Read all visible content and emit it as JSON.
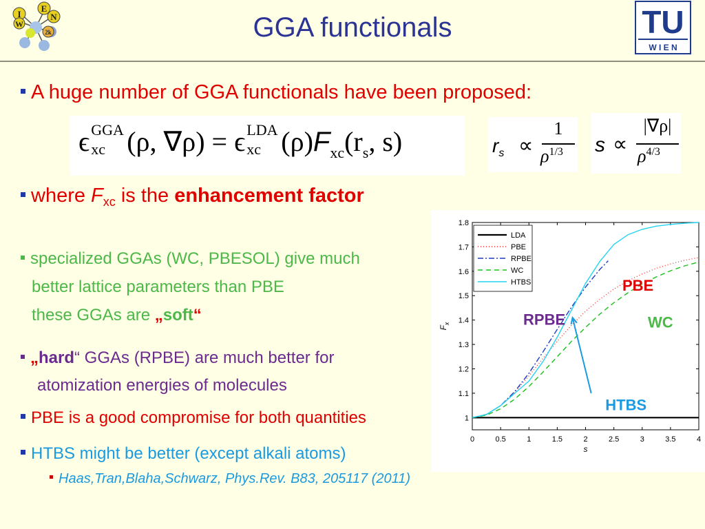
{
  "title": "GGA functionals",
  "logos": {
    "left_letters": [
      "I",
      "E",
      "N",
      "W",
      "2k"
    ],
    "tu_top": "TU",
    "tu_bottom": "W I E N"
  },
  "bullets": {
    "b1": "A huge number of GGA functionals have been proposed:",
    "b2_pre": "where ",
    "b2_F": "F",
    "b2_sub": "xc",
    "b2_mid": " is the ",
    "b2_bold": "enhancement factor",
    "b3_line1": "specialized GGAs (WC, PBESOL) give much",
    "b3_line2": "better lattice parameters than PBE",
    "b3_line3_pre": "these GGAs are ",
    "b3_open_quote": "„",
    "b3_bold": "soft",
    "b3_close_quote": "“",
    "b4_open_quote": "„",
    "b4_bold": "hard",
    "b4_rest": "“ GGAs (RPBE) are much better for",
    "b4_line2": "atomization energies of molecules",
    "b5": "PBE is a good compromise for both quantities",
    "b6": "HTBS might be better (except alkali atoms)",
    "b7": "Haas,Tran,Blaha,Schwarz, Phys.Rev. B83, 205117 (2011)"
  },
  "equations": {
    "eq1_eps": "ϵ",
    "eq1_sup1": "GGA",
    "eq1_sub1": "xc",
    "eq1_args1": "(ρ, ∇ρ) = ",
    "eq1_sup2": "LDA",
    "eq1_sub2": "xc",
    "eq1_args2": "(ρ)",
    "eq1_F": "F",
    "eq1_Fsub": "xc",
    "eq1_args3": "(r",
    "eq1_rsub": "s",
    "eq1_args4": ", s)",
    "eq2_lhs": "r",
    "eq2_lhs_sub": "s",
    "eq2_prop": "∝",
    "eq2_num": "1",
    "eq2_den": "ρ",
    "eq2_den_sup": "1/3",
    "eq3_lhs": "s",
    "eq3_prop": "∝",
    "eq3_num": "|∇ρ|",
    "eq3_den": "ρ",
    "eq3_den_sup": "4/3"
  },
  "chart_data": {
    "type": "line",
    "xlabel": "s",
    "ylabel": "F",
    "ylabel_sub": "x",
    "xlim": [
      0,
      4
    ],
    "ylim": [
      0.95,
      1.8
    ],
    "xticks": [
      "0",
      "0.5",
      "1",
      "1.5",
      "2",
      "2.5",
      "3",
      "3.5",
      "4"
    ],
    "yticks": [
      "1",
      "1.1",
      "1.2",
      "1.3",
      "1.4",
      "1.5",
      "1.6",
      "1.7",
      "1.8"
    ],
    "legend_position": "top-left",
    "series": [
      {
        "name": "LDA",
        "color": "#000000",
        "dash": "",
        "x": [
          0,
          4
        ],
        "y": [
          1.0,
          1.0
        ]
      },
      {
        "name": "PBE",
        "color": "#FF3030",
        "dash": "1,3",
        "x": [
          0,
          0.25,
          0.5,
          0.75,
          1.0,
          1.25,
          1.5,
          1.75,
          2.0,
          2.25,
          2.5,
          2.75,
          3.0,
          3.25,
          3.5,
          3.75,
          4.0
        ],
        "y": [
          1.0,
          1.013,
          1.049,
          1.104,
          1.171,
          1.243,
          1.313,
          1.378,
          1.436,
          1.485,
          1.527,
          1.561,
          1.589,
          1.612,
          1.63,
          1.645,
          1.656
        ]
      },
      {
        "name": "RPBE",
        "color": "#1A3CC8",
        "dash": "8,3,2,3",
        "x": [
          0,
          0.25,
          0.5,
          0.75,
          1.0,
          1.25,
          1.5,
          1.75,
          2.0,
          2.25,
          2.4
        ],
        "y": [
          1.0,
          1.013,
          1.049,
          1.107,
          1.182,
          1.27,
          1.362,
          1.452,
          1.535,
          1.607,
          1.643
        ]
      },
      {
        "name": "WC",
        "color": "#18C018",
        "dash": "7,5",
        "x": [
          0,
          0.25,
          0.5,
          0.75,
          1.0,
          1.25,
          1.5,
          1.75,
          2.0,
          2.25,
          2.5,
          2.75,
          3.0,
          3.25,
          3.5,
          3.75,
          4.0
        ],
        "y": [
          1.0,
          1.01,
          1.036,
          1.076,
          1.128,
          1.187,
          1.25,
          1.312,
          1.37,
          1.424,
          1.471,
          1.512,
          1.548,
          1.577,
          1.602,
          1.622,
          1.638
        ]
      },
      {
        "name": "HTBS",
        "color": "#22D4F0",
        "dash": "",
        "x": [
          0,
          0.25,
          0.5,
          0.75,
          1.0,
          1.25,
          1.5,
          1.75,
          2.0,
          2.25,
          2.5,
          2.75,
          3.0,
          3.25,
          3.5,
          3.75,
          4.0
        ],
        "y": [
          1.0,
          1.013,
          1.049,
          1.1,
          1.15,
          1.23,
          1.33,
          1.44,
          1.55,
          1.64,
          1.71,
          1.75,
          1.772,
          1.785,
          1.792,
          1.797,
          1.8
        ]
      }
    ],
    "annotations": [
      {
        "text": "PBE",
        "color": "#E00000",
        "at": [
          2.65,
          1.52
        ]
      },
      {
        "text": "RPBE",
        "color": "#6B2A8E",
        "at": [
          0.9,
          1.38
        ]
      },
      {
        "text": "WC",
        "color": "#4CB848",
        "at": [
          3.1,
          1.37
        ]
      },
      {
        "text": "HTBS",
        "color": "#1A9AE0",
        "at": [
          2.35,
          1.03
        ]
      }
    ]
  }
}
